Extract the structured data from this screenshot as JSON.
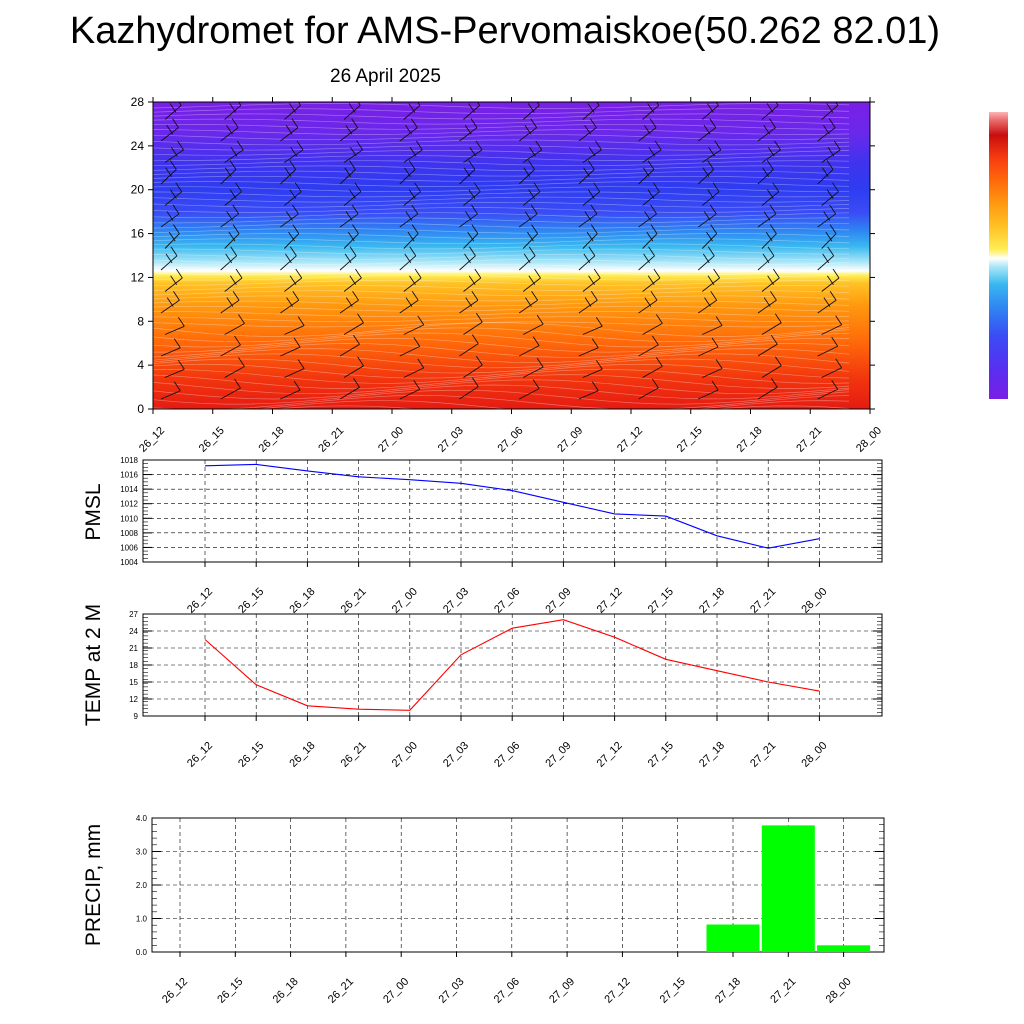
{
  "header": {
    "title": "Kazhydromet for AMS-Pervomaiskoe(50.262 82.01)",
    "subtitle": "26 April 2025"
  },
  "chart_data": [
    {
      "type": "heatmap",
      "name": "cross-section",
      "x_ticks": [
        "26_12",
        "26_15",
        "26_18",
        "26_21",
        "27_00",
        "27_03",
        "27_06",
        "27_09",
        "27_12",
        "27_15",
        "27_18",
        "27_21",
        "28_00"
      ],
      "y_ticks": [
        0,
        4,
        8,
        12,
        16,
        20,
        24,
        28
      ],
      "ylim": [
        0,
        28
      ],
      "colorbar": [
        "#7a1fe6",
        "#5a2ef0",
        "#3a4cf5",
        "#2f86f2",
        "#39b8f0",
        "#a8e6f7",
        "#ffffff",
        "#ffee55",
        "#ffc226",
        "#ff9a10",
        "#ff6a0a",
        "#f73c10",
        "#e51b12",
        "#c80e0e",
        "#ff9a9a"
      ],
      "barbs": true
    },
    {
      "type": "line",
      "name": "pmsl",
      "ylabel": "PMSL",
      "x": [
        "26_12",
        "26_15",
        "26_18",
        "26_21",
        "27_00",
        "27_03",
        "27_06",
        "27_09",
        "27_12",
        "27_15",
        "27_18",
        "27_21",
        "28_00"
      ],
      "values": [
        1017.2,
        1017.4,
        1016.5,
        1015.7,
        1015.3,
        1014.8,
        1013.8,
        1012.2,
        1010.6,
        1010.3,
        1007.6,
        1005.9,
        1007.2
      ],
      "y_ticks": [
        1004,
        1006,
        1008,
        1010,
        1012,
        1014,
        1016,
        1018
      ],
      "ylim": [
        1004,
        1018
      ],
      "color": "#0000ff"
    },
    {
      "type": "line",
      "name": "temp",
      "ylabel": "TEMP at 2 M",
      "x": [
        "26_12",
        "26_15",
        "26_18",
        "26_21",
        "27_00",
        "27_03",
        "27_06",
        "27_09",
        "27_12",
        "27_15",
        "27_18",
        "27_21",
        "28_00"
      ],
      "values": [
        22.5,
        14.5,
        10.8,
        10.2,
        10.0,
        19.8,
        24.5,
        26.0,
        22.9,
        19.0,
        17.0,
        15.0,
        13.4
      ],
      "y_ticks": [
        9,
        12,
        15,
        18,
        21,
        24,
        27
      ],
      "ylim": [
        9,
        27
      ],
      "color": "#ff0000"
    },
    {
      "type": "bar",
      "name": "precip",
      "ylabel": "PRECIP, mm",
      "categories": [
        "26_12",
        "26_15",
        "26_18",
        "26_21",
        "27_00",
        "27_03",
        "27_06",
        "27_09",
        "27_12",
        "27_15",
        "27_18",
        "27_21",
        "28_00"
      ],
      "values": [
        0,
        0,
        0,
        0,
        0,
        0,
        0,
        0,
        0,
        0,
        0.82,
        3.78,
        0.2
      ],
      "y_ticks": [
        "0.0",
        "1.0",
        "2.0",
        "3.0",
        "4.0"
      ],
      "ylim": [
        0,
        4
      ],
      "color": "#00ff00"
    }
  ]
}
